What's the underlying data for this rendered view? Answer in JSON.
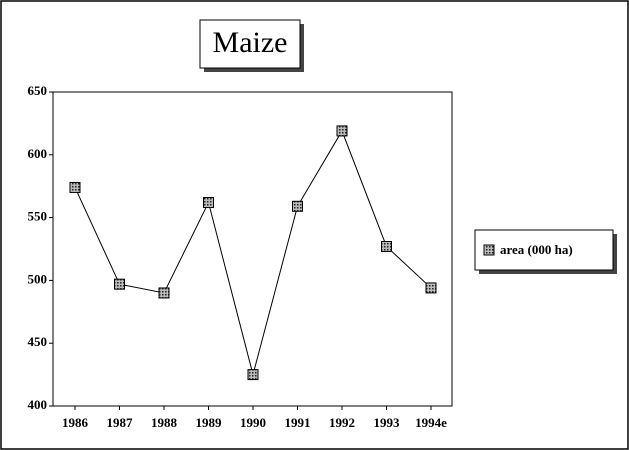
{
  "chart_data": {
    "type": "line",
    "title": "Maize",
    "categories": [
      "1986",
      "1987",
      "1988",
      "1989",
      "1990",
      "1991",
      "1992",
      "1993",
      "1994e"
    ],
    "series": [
      {
        "name": "area (000 ha)",
        "color": "#000000",
        "values": [
          574,
          497,
          490,
          562,
          425,
          559,
          619,
          527,
          494
        ]
      }
    ],
    "ylim": [
      400,
      650
    ],
    "yticks": [
      400,
      450,
      500,
      550,
      600,
      650
    ],
    "grid": false,
    "legend": "right"
  }
}
